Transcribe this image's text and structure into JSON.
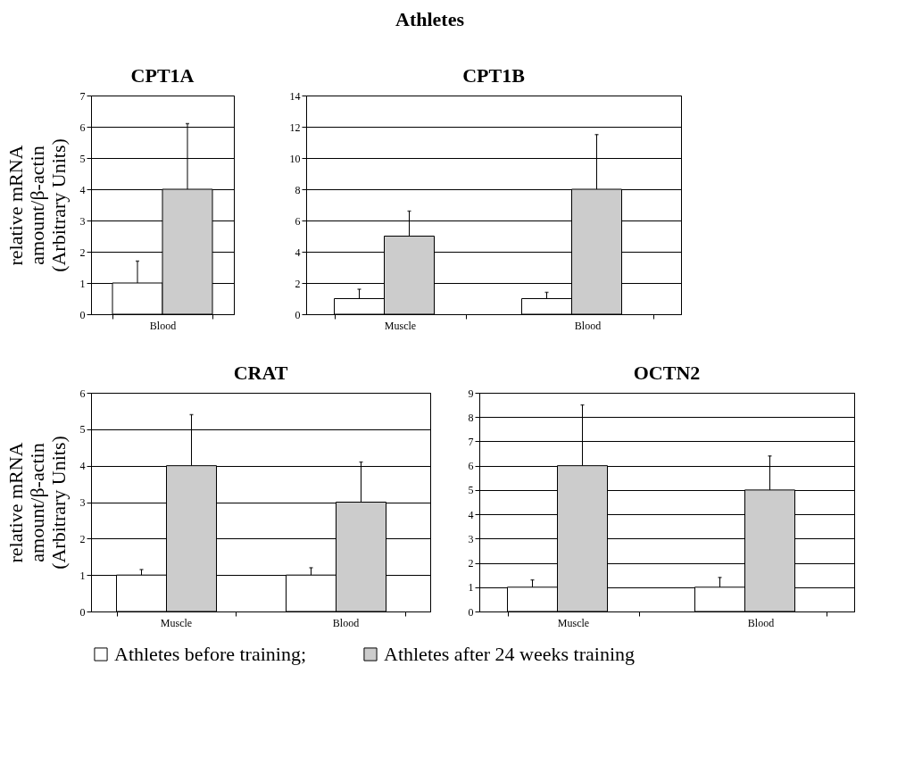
{
  "chart_data": [
    {
      "type": "bar",
      "title": "CPT1A",
      "ylabel": "relative mRNA\namount/β-actin\n(Arbitrary Units)",
      "annotations": [
        "Athletes"
      ],
      "categories": [
        "Blood"
      ],
      "ylim": [
        0,
        7
      ],
      "yticks": [
        0,
        1,
        2,
        3,
        4,
        5,
        6,
        7
      ],
      "grid": "y",
      "legend": "bottom",
      "series": [
        {
          "name": "Athletes before training;",
          "color": "#ffffff",
          "values": [
            1
          ],
          "errors": [
            [
              1,
              1.7
            ]
          ]
        },
        {
          "name": "Athletes after 24 weeks training",
          "color": "#cccccc",
          "values": [
            4
          ],
          "errors": [
            [
              4,
              6.1
            ]
          ]
        }
      ]
    },
    {
      "type": "bar",
      "title": "CPT1B",
      "categories": [
        "Muscle",
        "Blood"
      ],
      "ylim": [
        0,
        14
      ],
      "yticks": [
        0,
        2,
        4,
        6,
        8,
        10,
        12,
        14
      ],
      "grid": "y",
      "legend": "bottom",
      "series": [
        {
          "name": "Athletes before training;",
          "color": "#ffffff",
          "values": [
            1,
            1
          ],
          "errors": [
            [
              1,
              1.6
            ],
            [
              1,
              1.4
            ]
          ]
        },
        {
          "name": "Athletes after 24 weeks training",
          "color": "#cccccc",
          "values": [
            5,
            8
          ],
          "errors": [
            [
              5,
              6.6
            ],
            [
              8,
              11.5
            ]
          ]
        }
      ]
    },
    {
      "type": "bar",
      "title": "CRAT",
      "ylabel": "relative mRNA\namount/β-actin\n(Arbitrary Units)",
      "categories": [
        "Muscle",
        "Blood"
      ],
      "ylim": [
        0,
        6
      ],
      "yticks": [
        0,
        1,
        2,
        3,
        4,
        5,
        6
      ],
      "grid": "y",
      "legend": "bottom",
      "series": [
        {
          "name": "Athletes before training;",
          "color": "#ffffff",
          "values": [
            1,
            1
          ],
          "errors": [
            [
              1,
              1.15
            ],
            [
              1,
              1.2
            ]
          ]
        },
        {
          "name": "Athletes after 24 weeks training",
          "color": "#cccccc",
          "values": [
            4,
            3
          ],
          "errors": [
            [
              4,
              5.4
            ],
            [
              3,
              4.1
            ]
          ]
        }
      ]
    },
    {
      "type": "bar",
      "title": "OCTN2",
      "categories": [
        "Muscle",
        "Blood"
      ],
      "ylim": [
        0,
        9
      ],
      "yticks": [
        0,
        1,
        2,
        3,
        4,
        5,
        6,
        7,
        8,
        9
      ],
      "grid": "y",
      "legend": "bottom",
      "series": [
        {
          "name": "Athletes before training;",
          "color": "#ffffff",
          "values": [
            1,
            1
          ],
          "errors": [
            [
              1,
              1.3
            ],
            [
              1,
              1.4
            ]
          ]
        },
        {
          "name": "Athletes after 24 weeks training",
          "color": "#cccccc",
          "values": [
            6,
            5
          ],
          "errors": [
            [
              6,
              8.5
            ],
            [
              5,
              6.4
            ]
          ]
        }
      ]
    }
  ]
}
